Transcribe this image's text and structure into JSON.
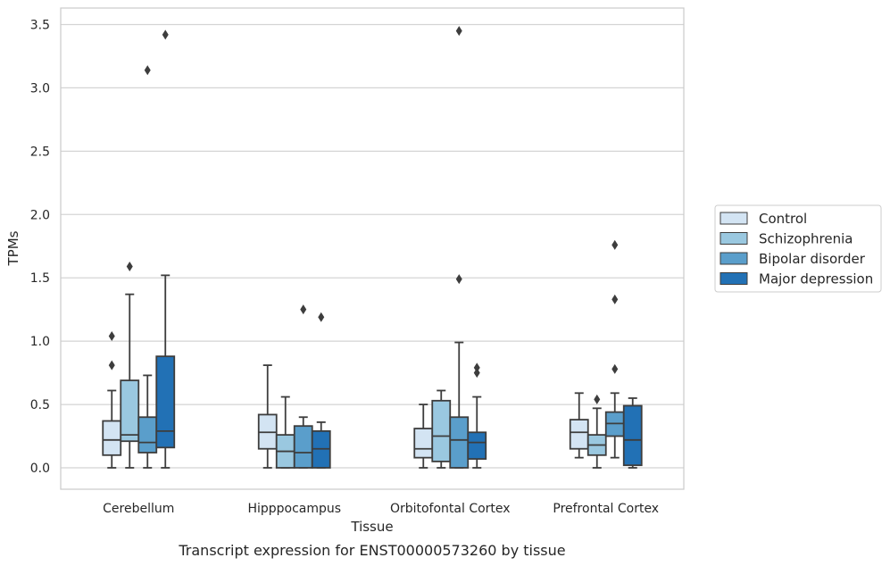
{
  "chart_data": {
    "type": "box",
    "title": "",
    "caption": "Transcript expression for ENST00000573260 by tissue",
    "xlabel": "Tissue",
    "ylabel": "TPMs",
    "ylim": [
      -0.17,
      3.62
    ],
    "yticks": [
      "0.0",
      "0.5",
      "1.0",
      "1.5",
      "2.0",
      "2.5",
      "3.0",
      "3.5"
    ],
    "grid": "horizontal",
    "legend_position": "right",
    "categories": [
      "Cerebellum",
      "Hipppocampus",
      "Orbitofontal Cortex",
      "Prefrontal Cortex"
    ],
    "series": [
      {
        "name": "Control",
        "color": "#d3e4f3",
        "boxes": [
          {
            "q1": 0.1,
            "median": 0.22,
            "q3": 0.37,
            "whisker_low": 0.0,
            "whisker_high": 0.61,
            "outliers": [
              0.81,
              1.04
            ]
          },
          {
            "q1": 0.15,
            "median": 0.28,
            "q3": 0.42,
            "whisker_low": 0.0,
            "whisker_high": 0.81,
            "outliers": []
          },
          {
            "q1": 0.08,
            "median": 0.15,
            "q3": 0.31,
            "whisker_low": 0.0,
            "whisker_high": 0.5,
            "outliers": []
          },
          {
            "q1": 0.15,
            "median": 0.28,
            "q3": 0.38,
            "whisker_low": 0.08,
            "whisker_high": 0.59,
            "outliers": []
          }
        ]
      },
      {
        "name": "Schizophrenia",
        "color": "#9ac8e0",
        "boxes": [
          {
            "q1": 0.21,
            "median": 0.26,
            "q3": 0.69,
            "whisker_low": 0.0,
            "whisker_high": 1.37,
            "outliers": [
              1.59
            ]
          },
          {
            "q1": 0.0,
            "median": 0.13,
            "q3": 0.26,
            "whisker_low": 0.0,
            "whisker_high": 0.56,
            "outliers": []
          },
          {
            "q1": 0.05,
            "median": 0.25,
            "q3": 0.53,
            "whisker_low": 0.0,
            "whisker_high": 0.61,
            "outliers": []
          },
          {
            "q1": 0.1,
            "median": 0.18,
            "q3": 0.26,
            "whisker_low": 0.0,
            "whisker_high": 0.47,
            "outliers": [
              0.54
            ]
          }
        ]
      },
      {
        "name": "Bipolar disorder",
        "color": "#5a9ecb",
        "boxes": [
          {
            "q1": 0.12,
            "median": 0.2,
            "q3": 0.4,
            "whisker_low": 0.0,
            "whisker_high": 0.73,
            "outliers": [
              3.14
            ]
          },
          {
            "q1": 0.0,
            "median": 0.12,
            "q3": 0.33,
            "whisker_low": 0.0,
            "whisker_high": 0.4,
            "outliers": [
              1.25
            ]
          },
          {
            "q1": 0.0,
            "median": 0.22,
            "q3": 0.4,
            "whisker_low": 0.0,
            "whisker_high": 0.99,
            "outliers": [
              1.49,
              3.45
            ]
          },
          {
            "q1": 0.25,
            "median": 0.35,
            "q3": 0.44,
            "whisker_low": 0.08,
            "whisker_high": 0.59,
            "outliers": [
              0.78,
              1.33,
              1.76
            ]
          }
        ]
      },
      {
        "name": "Major depression",
        "color": "#2271b5",
        "boxes": [
          {
            "q1": 0.16,
            "median": 0.29,
            "q3": 0.88,
            "whisker_low": 0.0,
            "whisker_high": 1.52,
            "outliers": [
              3.42
            ]
          },
          {
            "q1": 0.0,
            "median": 0.15,
            "q3": 0.29,
            "whisker_low": 0.0,
            "whisker_high": 0.36,
            "outliers": [
              1.19
            ]
          },
          {
            "q1": 0.07,
            "median": 0.2,
            "q3": 0.28,
            "whisker_low": 0.0,
            "whisker_high": 0.56,
            "outliers": [
              0.75,
              0.79
            ]
          },
          {
            "q1": 0.02,
            "median": 0.22,
            "q3": 0.49,
            "whisker_low": 0.0,
            "whisker_high": 0.55,
            "outliers": []
          }
        ]
      }
    ]
  }
}
